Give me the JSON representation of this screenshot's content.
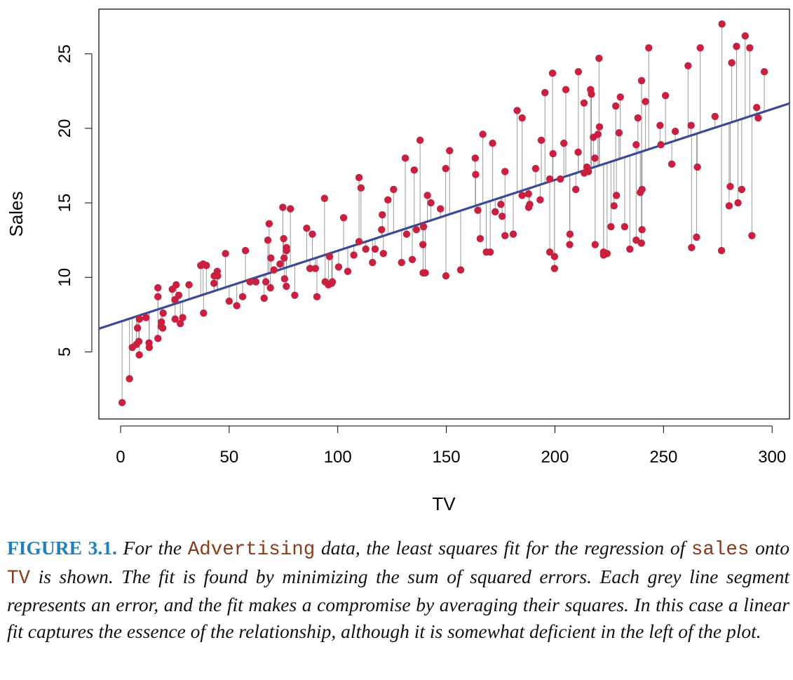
{
  "chart_data": {
    "type": "scatter",
    "xlabel": "TV",
    "ylabel": "Sales",
    "xlim": [
      -10,
      308
    ],
    "ylim": [
      0.5,
      28.0
    ],
    "xticks": [
      0,
      50,
      100,
      150,
      200,
      250,
      300
    ],
    "yticks": [
      5,
      10,
      15,
      20,
      25
    ],
    "grid": false,
    "regression_line": {
      "intercept": 7.0326,
      "slope": 0.047537
    },
    "colors": {
      "points": "#c8203e",
      "fit_line": "#3a4a9a",
      "residuals": "#9a9a9a"
    },
    "points": [
      [
        0.7,
        1.6
      ],
      [
        4.1,
        3.2
      ],
      [
        5.4,
        5.3
      ],
      [
        7.3,
        5.5
      ],
      [
        7.8,
        6.6
      ],
      [
        8.4,
        5.7
      ],
      [
        8.6,
        4.8
      ],
      [
        8.7,
        7.2
      ],
      [
        11.7,
        7.3
      ],
      [
        13.1,
        5.6
      ],
      [
        13.2,
        5.3
      ],
      [
        17.2,
        9.3
      ],
      [
        17.2,
        5.9
      ],
      [
        17.2,
        8.7
      ],
      [
        18.7,
        6.7
      ],
      [
        18.8,
        7.0
      ],
      [
        19.4,
        6.6
      ],
      [
        19.6,
        7.6
      ],
      [
        23.8,
        9.2
      ],
      [
        25.0,
        8.5
      ],
      [
        25.1,
        7.2
      ],
      [
        25.6,
        9.5
      ],
      [
        26.8,
        8.8
      ],
      [
        27.5,
        6.9
      ],
      [
        28.6,
        7.3
      ],
      [
        31.5,
        9.5
      ],
      [
        36.9,
        10.8
      ],
      [
        38.0,
        10.9
      ],
      [
        38.2,
        7.6
      ],
      [
        39.5,
        10.8
      ],
      [
        43.0,
        9.6
      ],
      [
        43.1,
        10.1
      ],
      [
        44.5,
        10.4
      ],
      [
        44.7,
        10.1
      ],
      [
        48.3,
        11.6
      ],
      [
        50.0,
        8.4
      ],
      [
        53.5,
        8.1
      ],
      [
        56.2,
        8.7
      ],
      [
        57.5,
        11.8
      ],
      [
        59.6,
        9.7
      ],
      [
        62.3,
        9.7
      ],
      [
        66.1,
        8.6
      ],
      [
        66.9,
        9.7
      ],
      [
        67.8,
        12.5
      ],
      [
        68.4,
        13.6
      ],
      [
        69.0,
        9.3
      ],
      [
        69.2,
        11.3
      ],
      [
        70.6,
        10.5
      ],
      [
        73.4,
        10.9
      ],
      [
        74.7,
        14.7
      ],
      [
        75.1,
        12.6
      ],
      [
        75.3,
        11.3
      ],
      [
        75.5,
        9.9
      ],
      [
        76.3,
        9.4
      ],
      [
        76.4,
        12.0
      ],
      [
        76.4,
        11.8
      ],
      [
        78.2,
        14.6
      ],
      [
        80.2,
        8.8
      ],
      [
        85.7,
        13.3
      ],
      [
        87.2,
        10.6
      ],
      [
        88.3,
        12.9
      ],
      [
        89.7,
        10.6
      ],
      [
        90.4,
        8.7
      ],
      [
        93.9,
        15.3
      ],
      [
        94.2,
        9.7
      ],
      [
        95.7,
        9.5
      ],
      [
        96.2,
        11.4
      ],
      [
        97.2,
        9.6
      ],
      [
        97.5,
        9.7
      ],
      [
        100.4,
        10.7
      ],
      [
        102.7,
        14.0
      ],
      [
        104.6,
        10.4
      ],
      [
        107.4,
        11.5
      ],
      [
        109.8,
        12.4
      ],
      [
        109.8,
        16.7
      ],
      [
        110.7,
        16.0
      ],
      [
        112.9,
        11.9
      ],
      [
        116.0,
        11.0
      ],
      [
        117.2,
        11.9
      ],
      [
        120.2,
        13.2
      ],
      [
        120.5,
        14.2
      ],
      [
        121.0,
        11.6
      ],
      [
        123.1,
        15.2
      ],
      [
        125.7,
        15.9
      ],
      [
        129.4,
        11.0
      ],
      [
        131.1,
        18.0
      ],
      [
        131.7,
        12.9
      ],
      [
        134.3,
        11.2
      ],
      [
        135.2,
        17.2
      ],
      [
        136.2,
        13.2
      ],
      [
        137.9,
        19.2
      ],
      [
        139.2,
        12.2
      ],
      [
        139.3,
        10.3
      ],
      [
        139.5,
        13.4
      ],
      [
        140.3,
        10.3
      ],
      [
        141.3,
        15.5
      ],
      [
        142.9,
        15.0
      ],
      [
        147.3,
        14.6
      ],
      [
        149.7,
        17.3
      ],
      [
        149.8,
        10.1
      ],
      [
        151.5,
        18.5
      ],
      [
        156.6,
        10.5
      ],
      [
        163.3,
        18.0
      ],
      [
        163.5,
        16.9
      ],
      [
        164.5,
        14.5
      ],
      [
        165.6,
        12.6
      ],
      [
        166.8,
        19.6
      ],
      [
        168.4,
        11.7
      ],
      [
        170.2,
        11.7
      ],
      [
        171.3,
        19.0
      ],
      [
        172.5,
        14.4
      ],
      [
        175.1,
        14.9
      ],
      [
        175.7,
        14.1
      ],
      [
        177.0,
        12.8
      ],
      [
        177.0,
        17.1
      ],
      [
        180.8,
        12.9
      ],
      [
        182.6,
        21.2
      ],
      [
        184.9,
        20.7
      ],
      [
        184.9,
        15.5
      ],
      [
        187.8,
        15.6
      ],
      [
        187.9,
        14.7
      ],
      [
        188.4,
        14.9
      ],
      [
        191.1,
        17.3
      ],
      [
        193.2,
        15.2
      ],
      [
        193.7,
        19.2
      ],
      [
        195.4,
        22.4
      ],
      [
        197.6,
        11.7
      ],
      [
        197.6,
        16.6
      ],
      [
        198.9,
        23.7
      ],
      [
        199.1,
        18.3
      ],
      [
        199.8,
        10.6
      ],
      [
        199.8,
        11.4
      ],
      [
        202.5,
        16.6
      ],
      [
        204.1,
        19.0
      ],
      [
        205.0,
        22.6
      ],
      [
        206.8,
        12.2
      ],
      [
        206.9,
        12.9
      ],
      [
        209.6,
        15.9
      ],
      [
        210.7,
        18.4
      ],
      [
        210.8,
        23.8
      ],
      [
        213.4,
        21.7
      ],
      [
        213.5,
        17.0
      ],
      [
        214.7,
        17.4
      ],
      [
        215.4,
        17.1
      ],
      [
        216.4,
        22.6
      ],
      [
        216.8,
        22.3
      ],
      [
        217.7,
        19.4
      ],
      [
        218.4,
        18.0
      ],
      [
        218.5,
        12.2
      ],
      [
        219.8,
        19.6
      ],
      [
        220.3,
        24.7
      ],
      [
        220.5,
        20.1
      ],
      [
        222.4,
        11.7
      ],
      [
        222.4,
        11.5
      ],
      [
        224.0,
        11.6
      ],
      [
        225.8,
        13.4
      ],
      [
        227.2,
        14.8
      ],
      [
        228.0,
        21.5
      ],
      [
        228.3,
        15.5
      ],
      [
        229.5,
        19.7
      ],
      [
        230.1,
        22.1
      ],
      [
        232.1,
        13.4
      ],
      [
        234.5,
        11.9
      ],
      [
        237.4,
        12.5
      ],
      [
        237.4,
        18.9
      ],
      [
        238.2,
        20.7
      ],
      [
        239.3,
        15.7
      ],
      [
        239.8,
        12.3
      ],
      [
        239.9,
        23.2
      ],
      [
        240.1,
        13.2
      ],
      [
        240.1,
        15.9
      ],
      [
        241.7,
        21.8
      ],
      [
        243.2,
        25.4
      ],
      [
        248.4,
        20.2
      ],
      [
        248.8,
        18.9
      ],
      [
        250.9,
        22.2
      ],
      [
        253.8,
        17.6
      ],
      [
        255.4,
        19.8
      ],
      [
        261.3,
        24.2
      ],
      [
        262.7,
        20.2
      ],
      [
        262.9,
        12.0
      ],
      [
        265.2,
        12.7
      ],
      [
        265.6,
        17.4
      ],
      [
        266.9,
        25.4
      ],
      [
        273.7,
        20.8
      ],
      [
        276.7,
        11.8
      ],
      [
        276.9,
        27.0
      ],
      [
        280.2,
        14.8
      ],
      [
        280.7,
        16.1
      ],
      [
        281.4,
        24.4
      ],
      [
        283.6,
        25.5
      ],
      [
        284.3,
        15.0
      ],
      [
        286.0,
        15.9
      ],
      [
        287.6,
        26.2
      ],
      [
        289.7,
        25.4
      ],
      [
        290.7,
        12.8
      ],
      [
        292.9,
        21.4
      ],
      [
        293.6,
        20.7
      ],
      [
        296.4,
        23.8
      ]
    ]
  },
  "caption": {
    "label": "FIGURE 3.1.",
    "part1": "For the",
    "code1": "Advertising",
    "part2": "data, the least squares fit for the regression of",
    "code2": "sales",
    "part3": "onto",
    "code3": "TV",
    "part4": "is shown. The fit is found by minimizing the sum of squared errors. Each grey line segment represents an error, and the fit makes a compromise by averaging their squares. In this case a linear fit captures the essence of the relationship, although it is somewhat deficient in the left of the plot."
  }
}
